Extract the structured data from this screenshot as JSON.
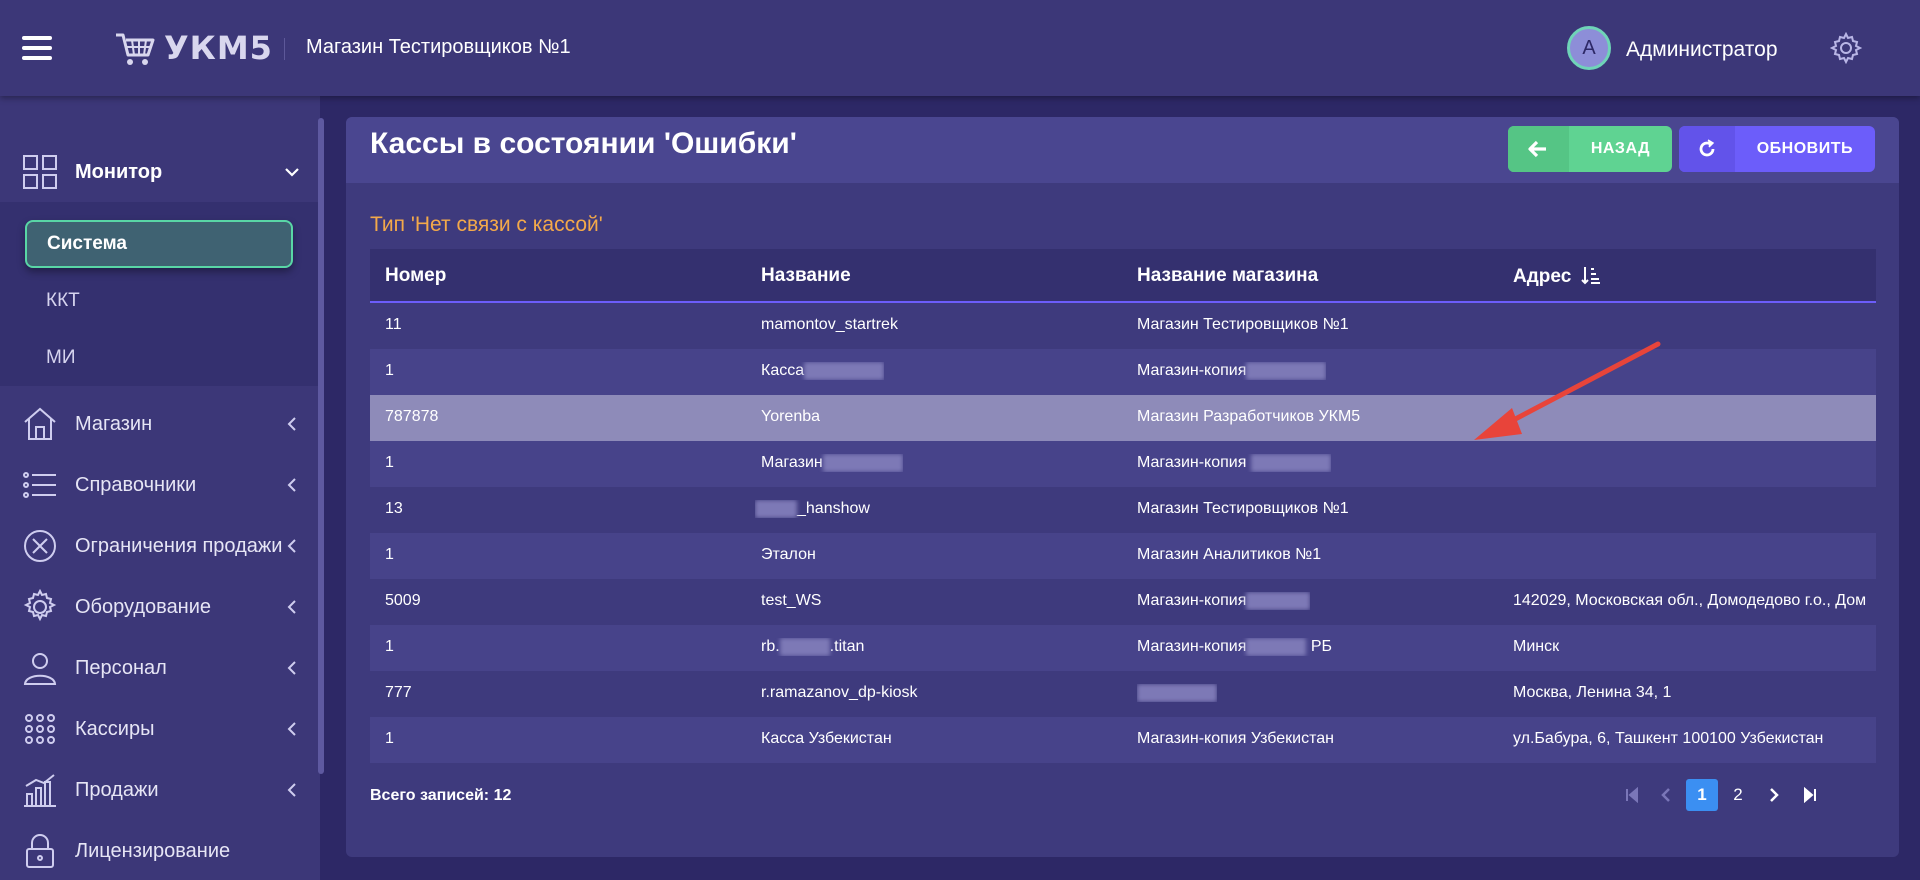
{
  "header": {
    "logo_text": "УКМ5",
    "store_name": "Магазин Тестировщиков №1",
    "avatar_letter": "A",
    "user_name": "Администратор"
  },
  "sidebar": {
    "items": [
      {
        "label": "Монитор",
        "icon": "monitor-grid-icon"
      },
      {
        "label": "Магазин",
        "icon": "store-house-icon"
      },
      {
        "label": "Справочники",
        "icon": "list-icon"
      },
      {
        "label": "Ограничения продажи",
        "icon": "x-circle-icon"
      },
      {
        "label": "Оборудование",
        "icon": "gear-icon"
      },
      {
        "label": "Персонал",
        "icon": "person-icon"
      },
      {
        "label": "Кассиры",
        "icon": "dots-grid-icon"
      },
      {
        "label": "Продажи",
        "icon": "chart-icon"
      },
      {
        "label": "Лицензирование",
        "icon": "lock-icon"
      }
    ],
    "submenu": [
      {
        "label": "Система",
        "active": true
      },
      {
        "label": "ККТ"
      },
      {
        "label": "МИ"
      }
    ]
  },
  "main": {
    "title": "Кассы в состоянии 'Ошибки'",
    "back_label": "НАЗАД",
    "refresh_label": "ОБНОВИТЬ",
    "section_title": "Тип 'Нет связи с кассой'",
    "columns": [
      "Номер",
      "Название",
      "Название магазина",
      "Адрес"
    ],
    "rows": [
      {
        "number": "11",
        "name": "mamontov_startrek",
        "store": "Магазин Тестировщиков №1",
        "address": ""
      },
      {
        "number": "1",
        "name": "Касса",
        "store": "Магазин-копия",
        "address": ""
      },
      {
        "number": "787878",
        "name": "Yorenba",
        "store": "Магазин Разработчиков УКМ5",
        "address": ""
      },
      {
        "number": "1",
        "name": "Магазин",
        "store": "Магазин-копия",
        "address": ""
      },
      {
        "number": "13",
        "name": "_hanshow",
        "store": "Магазин Тестировщиков №1",
        "address": ""
      },
      {
        "number": "1",
        "name": "Эталон",
        "store": "Магазин Аналитиков №1",
        "address": ""
      },
      {
        "number": "5009",
        "name": "test_WS",
        "store": "Магазин-копия",
        "address": "142029, Московская обл., Домодедово г.о., Дом"
      },
      {
        "number": "1",
        "name_pre": "rb.",
        "name_post": ".titan",
        "store": "Магазин-копия",
        "store_post": "РБ",
        "address": "Минск"
      },
      {
        "number": "777",
        "name": "r.ramazanov_dp-kiosk",
        "store": "",
        "address": "Москва, Ленина 34, 1"
      },
      {
        "number": "1",
        "name": "Касса Узбекистан",
        "store": "Магазин-копия Узбекистан",
        "address": "ул.Бабура, 6, Ташкент 100100 Узбекистан"
      }
    ],
    "total_label": "Всего записей: 12",
    "pages": [
      "1",
      "2"
    ],
    "active_page": "1"
  },
  "colors": {
    "accent": "#6c5dfa",
    "success": "#5fd392",
    "warning_text": "#f3a94a",
    "selected_row": "#8e8bb9",
    "annotation_arrow": "#e8443a"
  }
}
